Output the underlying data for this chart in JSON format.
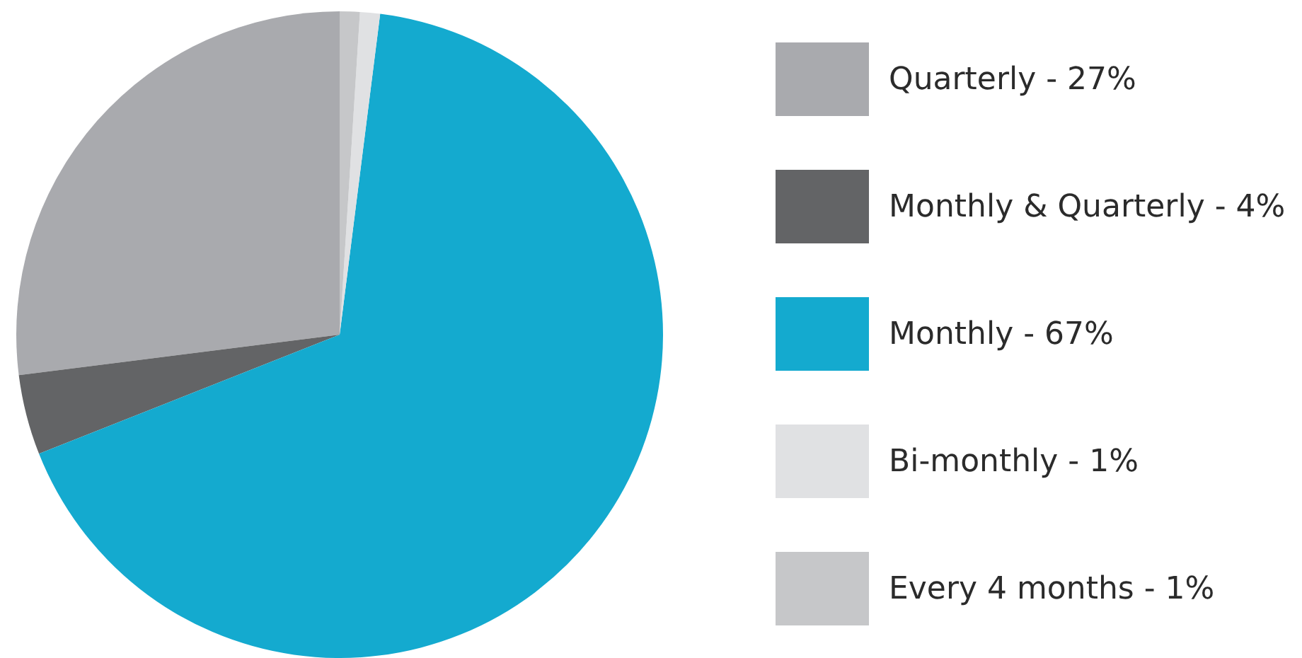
{
  "chart_data": {
    "type": "pie",
    "categories": [
      "Quarterly - 27%",
      "Monthly & Quarterly - 4%",
      "Monthly - 67%",
      "Bi-monthly - 1%",
      "Every 4 months - 1%"
    ],
    "values": [
      27,
      4,
      67,
      1,
      1
    ],
    "colors": [
      "#a9aaae",
      "#636466",
      "#14aacf",
      "#e0e1e3",
      "#c6c7c9"
    ],
    "legend": "right"
  }
}
